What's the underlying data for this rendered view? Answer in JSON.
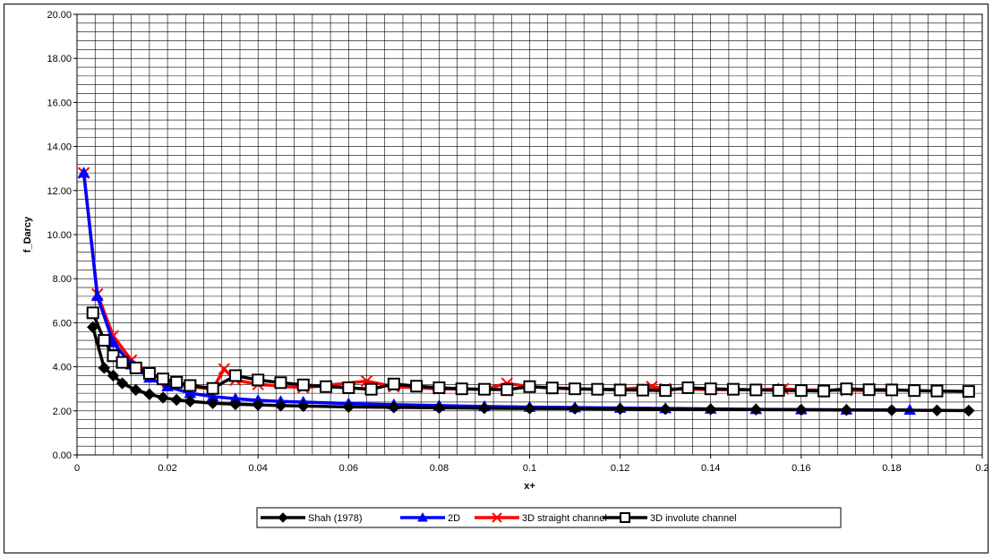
{
  "chart_data": {
    "type": "line",
    "title": "",
    "xlabel": "x+",
    "ylabel": "f_Darcy",
    "xlim": [
      0,
      0.2
    ],
    "ylim": [
      0,
      20
    ],
    "x_ticks": [
      0,
      0.02,
      0.04,
      0.06,
      0.08,
      0.1,
      0.12,
      0.14,
      0.16,
      0.18,
      0.2
    ],
    "x_tick_labels": [
      "0",
      "0.02",
      "0.04",
      "0.06",
      "0.08",
      "0.1",
      "0.12",
      "0.14",
      "0.16",
      "0.18",
      "0.2"
    ],
    "y_ticks": [
      0,
      2,
      4,
      6,
      8,
      10,
      12,
      14,
      16,
      18,
      20
    ],
    "y_tick_labels": [
      "0.00",
      "2.00",
      "4.00",
      "6.00",
      "8.00",
      "10.00",
      "12.00",
      "14.00",
      "16.00",
      "18.00",
      "20.00"
    ],
    "grid": true,
    "legend_position": "bottom",
    "series": [
      {
        "name": "Shah (1978)",
        "color": "#000000",
        "marker": "diamond",
        "x": [
          0.0035,
          0.006,
          0.008,
          0.01,
          0.013,
          0.016,
          0.019,
          0.022,
          0.025,
          0.03,
          0.035,
          0.04,
          0.045,
          0.05,
          0.06,
          0.07,
          0.08,
          0.09,
          0.1,
          0.11,
          0.12,
          0.13,
          0.14,
          0.15,
          0.16,
          0.17,
          0.18,
          0.19,
          0.197
        ],
        "y": [
          5.8,
          3.95,
          3.6,
          3.25,
          2.95,
          2.75,
          2.6,
          2.5,
          2.43,
          2.35,
          2.3,
          2.27,
          2.24,
          2.22,
          2.18,
          2.16,
          2.14,
          2.12,
          2.11,
          2.1,
          2.09,
          2.08,
          2.07,
          2.06,
          2.05,
          2.04,
          2.03,
          2.02,
          2.01
        ]
      },
      {
        "name": "2D",
        "color": "#0000ff",
        "marker": "triangle",
        "x": [
          0.0015,
          0.0045,
          0.008,
          0.012,
          0.016,
          0.02,
          0.025,
          0.03,
          0.035,
          0.04,
          0.045,
          0.05,
          0.06,
          0.07,
          0.08,
          0.09,
          0.1,
          0.11,
          0.12,
          0.13,
          0.14,
          0.15,
          0.16,
          0.17,
          0.184
        ],
        "y": [
          12.8,
          7.2,
          5.1,
          4.1,
          3.5,
          3.1,
          2.8,
          2.65,
          2.55,
          2.48,
          2.43,
          2.4,
          2.33,
          2.28,
          2.24,
          2.2,
          2.17,
          2.15,
          2.13,
          2.11,
          2.09,
          2.07,
          2.06,
          2.05,
          2.04
        ]
      },
      {
        "name": "3D straight channel",
        "color": "#ff0000",
        "marker": "x",
        "x": [
          0.0015,
          0.0045,
          0.008,
          0.012,
          0.016,
          0.02,
          0.025,
          0.03,
          0.0325,
          0.035,
          0.04,
          0.05,
          0.064,
          0.07,
          0.08,
          0.09,
          0.095,
          0.1,
          0.11,
          0.12,
          0.127,
          0.13,
          0.14,
          0.15,
          0.156,
          0.16,
          0.17,
          0.18
        ],
        "y": [
          12.8,
          7.3,
          5.4,
          4.3,
          3.7,
          3.3,
          3.1,
          3.0,
          3.9,
          3.4,
          3.2,
          3.05,
          3.35,
          3.1,
          3.0,
          2.98,
          3.25,
          3.1,
          3.0,
          2.97,
          3.1,
          3.0,
          2.97,
          2.95,
          3.0,
          2.95,
          2.93,
          2.92
        ]
      },
      {
        "name": "3D involute channel",
        "color": "#000000",
        "marker": "square",
        "x": [
          0.0035,
          0.006,
          0.008,
          0.01,
          0.013,
          0.016,
          0.019,
          0.022,
          0.025,
          0.03,
          0.035,
          0.04,
          0.045,
          0.05,
          0.055,
          0.06,
          0.065,
          0.07,
          0.075,
          0.08,
          0.085,
          0.09,
          0.095,
          0.1,
          0.105,
          0.11,
          0.115,
          0.12,
          0.125,
          0.13,
          0.135,
          0.14,
          0.145,
          0.15,
          0.155,
          0.16,
          0.165,
          0.17,
          0.175,
          0.18,
          0.185,
          0.19,
          0.197
        ],
        "y": [
          6.45,
          5.2,
          4.5,
          4.2,
          3.95,
          3.7,
          3.45,
          3.3,
          3.15,
          3.02,
          3.6,
          3.4,
          3.28,
          3.18,
          3.1,
          3.05,
          2.98,
          3.22,
          3.12,
          3.05,
          3.0,
          2.98,
          2.96,
          3.1,
          3.04,
          3.0,
          2.98,
          2.95,
          2.94,
          2.92,
          3.05,
          3.0,
          2.98,
          2.95,
          2.93,
          2.92,
          2.9,
          3.0,
          2.96,
          2.95,
          2.92,
          2.9,
          2.88
        ]
      }
    ]
  }
}
